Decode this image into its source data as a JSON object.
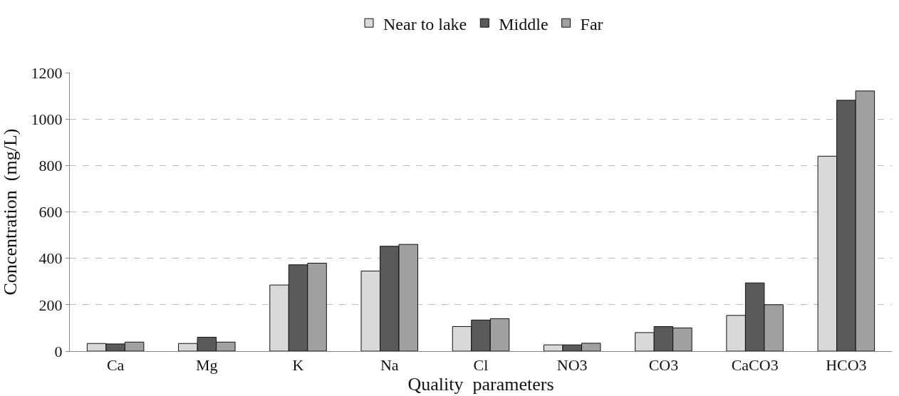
{
  "chart_data": {
    "type": "bar",
    "xlabel": "Quality  parameters",
    "ylabel": "Concentration  (mg/L)",
    "categories": [
      "Ca",
      "Mg",
      "K",
      "Na",
      "Cl",
      "NO3",
      "CO3",
      "CaCO3",
      "HCO3"
    ],
    "series": [
      {
        "name": "Near to lake",
        "color": "#d9d9d9",
        "values": [
          33,
          33,
          285,
          345,
          106,
          27,
          80,
          154,
          840
        ]
      },
      {
        "name": "Middle",
        "color": "#5a5a5a",
        "values": [
          31,
          60,
          372,
          452,
          134,
          27,
          106,
          294,
          1081
        ]
      },
      {
        "name": "Far",
        "color": "#a0a0a0",
        "values": [
          39,
          39,
          379,
          460,
          140,
          34,
          100,
          200,
          1121
        ]
      }
    ],
    "ylim": [
      0,
      1200
    ],
    "yticks": [
      0,
      200,
      400,
      600,
      800,
      1000,
      1200
    ],
    "grid": "y",
    "legend": "top"
  }
}
